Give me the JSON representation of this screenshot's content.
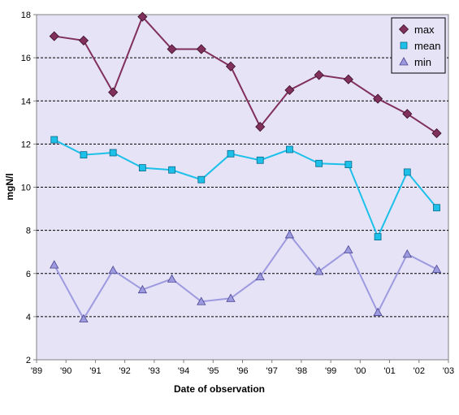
{
  "chart_data": {
    "type": "line",
    "xlabel": "Date of observation",
    "ylabel": "mgN/l",
    "ylim": [
      2,
      18
    ],
    "yticks": [
      2,
      4,
      6,
      8,
      10,
      12,
      14,
      16,
      18
    ],
    "xlim": [
      "1989",
      "2003"
    ],
    "x_tick_labels": [
      "'89",
      "'90",
      "'91",
      "'92",
      "'93",
      "'94",
      "'95",
      "'96",
      "'97",
      "'98",
      "'99",
      "'00",
      "'01",
      "'02",
      "'03"
    ],
    "grid": "horizontal dashed",
    "legend_position": "top-right",
    "background_color": "#e6e3f7",
    "x": [
      1989.6,
      1990.6,
      1991.6,
      1992.6,
      1993.6,
      1994.6,
      1995.6,
      1996.6,
      1997.6,
      1998.6,
      1999.6,
      2000.6,
      2001.6,
      2002.6
    ],
    "series": [
      {
        "name": "max",
        "marker": "diamond",
        "color": "#80305a",
        "values": [
          17.0,
          16.8,
          14.4,
          17.9,
          16.4,
          16.4,
          15.6,
          12.8,
          14.5,
          15.2,
          15.0,
          14.1,
          13.4,
          12.5
        ]
      },
      {
        "name": "mean",
        "marker": "square",
        "color": "#1cc0e8",
        "values": [
          12.2,
          11.5,
          11.6,
          10.9,
          10.8,
          10.35,
          11.55,
          11.25,
          11.75,
          11.1,
          11.05,
          7.7,
          10.7,
          9.05
        ]
      },
      {
        "name": "min",
        "marker": "triangle",
        "color": "#9d9ae0",
        "values": [
          6.4,
          3.9,
          6.15,
          5.25,
          5.75,
          4.7,
          4.85,
          5.85,
          7.8,
          6.1,
          7.1,
          4.2,
          6.9,
          6.2
        ]
      }
    ]
  }
}
